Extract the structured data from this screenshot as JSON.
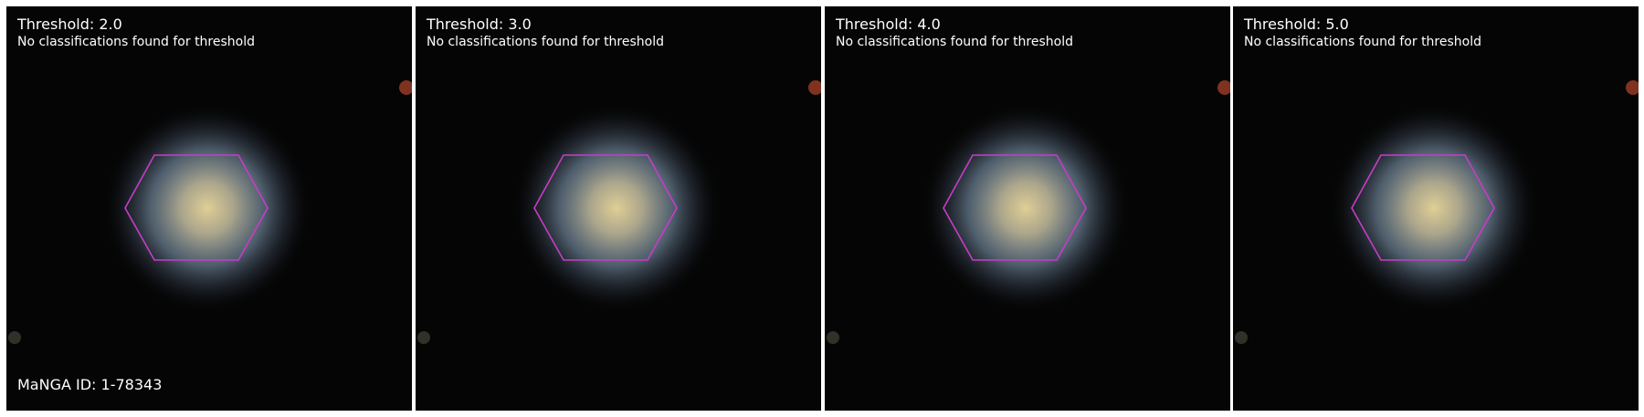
{
  "panels": [
    {
      "title": "Threshold: 2.0",
      "message": "No classifications found for threshold",
      "footer": "MaNGA ID: 1-78343"
    },
    {
      "title": "Threshold: 3.0",
      "message": "No classifications found for threshold"
    },
    {
      "title": "Threshold: 4.0",
      "message": "No classifications found for threshold"
    },
    {
      "title": "Threshold: 5.0",
      "message": "No classifications found for threshold"
    }
  ],
  "colors": {
    "background": "#050505",
    "hexagon": "#c83cc8",
    "galaxy_core": "#d2c38c",
    "galaxy_halo": "#78a0c8",
    "text": "#ffffff"
  },
  "icons": {
    "overlay": "ifu-hexagon",
    "image": "galaxy-cutout"
  }
}
